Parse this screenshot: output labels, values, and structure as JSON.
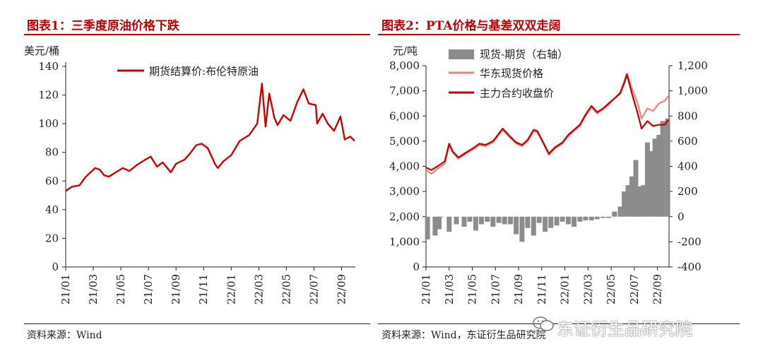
{
  "panel1": {
    "title": "图表1：三季度原油价格下跌",
    "source": "资料来源：Wind",
    "unit": "美元/桶"
  },
  "panel2": {
    "title": "图表2：PTA价格与基差双双走阔",
    "source": "资料来源：Wind，东证衍生品研究院",
    "unit_left": "元/吨"
  },
  "watermark": "东证衍生品研究院",
  "colors": {
    "title_red": "#c00000",
    "crude": "#cc0000",
    "spot": "#f08080",
    "futures": "#c00000",
    "basis": "#8c8c8c"
  },
  "chart_data": [
    {
      "type": "line",
      "title": "图表1：三季度原油价格下跌",
      "ylabel": "美元/桶",
      "ylim": [
        0,
        140
      ],
      "yticks": [
        0,
        20,
        40,
        60,
        80,
        100,
        120,
        140
      ],
      "xlim": [
        "2021-01",
        "2022-10"
      ],
      "xticks": [
        "21/01",
        "21/03",
        "21/05",
        "21/07",
        "21/09",
        "21/11",
        "22/01",
        "22/03",
        "22/05",
        "22/07",
        "22/09"
      ],
      "legend_position": "top",
      "series": [
        {
          "name": "期货结算价:布伦特原油",
          "color": "#cc0000",
          "points": [
            [
              "2021-01-01",
              53
            ],
            [
              "2021-01-15",
              56
            ],
            [
              "2021-02-01",
              57
            ],
            [
              "2021-02-15",
              63
            ],
            [
              "2021-03-05",
              69
            ],
            [
              "2021-03-15",
              68
            ],
            [
              "2021-03-25",
              64
            ],
            [
              "2021-04-05",
              63
            ],
            [
              "2021-04-20",
              66
            ],
            [
              "2021-05-05",
              69
            ],
            [
              "2021-05-20",
              67
            ],
            [
              "2021-06-05",
              71
            ],
            [
              "2021-06-25",
              75
            ],
            [
              "2021-07-06",
              77
            ],
            [
              "2021-07-20",
              70
            ],
            [
              "2021-08-02",
              73
            ],
            [
              "2021-08-20",
              66
            ],
            [
              "2021-09-01",
              72
            ],
            [
              "2021-09-20",
              75
            ],
            [
              "2021-10-01",
              79
            ],
            [
              "2021-10-15",
              85
            ],
            [
              "2021-10-27",
              86
            ],
            [
              "2021-11-10",
              83
            ],
            [
              "2021-11-26",
              72
            ],
            [
              "2021-12-02",
              69
            ],
            [
              "2021-12-15",
              74
            ],
            [
              "2022-01-01",
              78
            ],
            [
              "2022-01-20",
              88
            ],
            [
              "2022-02-10",
              92
            ],
            [
              "2022-02-28",
              100
            ],
            [
              "2022-03-08",
              128
            ],
            [
              "2022-03-16",
              98
            ],
            [
              "2022-03-24",
              121
            ],
            [
              "2022-04-05",
              104
            ],
            [
              "2022-04-12",
              99
            ],
            [
              "2022-04-25",
              106
            ],
            [
              "2022-05-10",
              102
            ],
            [
              "2022-05-25",
              115
            ],
            [
              "2022-06-08",
              124
            ],
            [
              "2022-06-20",
              114
            ],
            [
              "2022-07-05",
              113
            ],
            [
              "2022-07-08",
              100
            ],
            [
              "2022-07-20",
              107
            ],
            [
              "2022-08-01",
              100
            ],
            [
              "2022-08-15",
              95
            ],
            [
              "2022-08-29",
              105
            ],
            [
              "2022-09-08",
              89
            ],
            [
              "2022-09-20",
              91
            ],
            [
              "2022-09-30",
              88
            ]
          ]
        }
      ]
    },
    {
      "type": "line+bar",
      "title": "图表2：PTA价格与基差双双走阔",
      "ylabel_left": "元/吨",
      "ylim_left": [
        0,
        8000
      ],
      "yticks_left": [
        0,
        1000,
        2000,
        3000,
        4000,
        5000,
        6000,
        7000,
        8000
      ],
      "ylim_right": [
        -400,
        1200
      ],
      "yticks_right": [
        -400,
        -200,
        0,
        200,
        400,
        600,
        800,
        1000,
        1200
      ],
      "xlim": [
        "2021-01",
        "2022-10"
      ],
      "xticks": [
        "21/01",
        "21/03",
        "21/05",
        "21/07",
        "21/09",
        "21/11",
        "22/01",
        "22/03",
        "22/05",
        "22/07",
        "22/09"
      ],
      "legend_position": "top",
      "series": [
        {
          "name": "现货-期货（右轴）",
          "type": "bar",
          "axis": "right",
          "color": "#8c8c8c",
          "points": [
            [
              "2021-01-05",
              -180
            ],
            [
              "2021-01-25",
              -150
            ],
            [
              "2021-02-05",
              -100
            ],
            [
              "2021-02-10",
              0
            ],
            [
              "2021-03-01",
              -120
            ],
            [
              "2021-03-20",
              -60
            ],
            [
              "2021-04-10",
              -80
            ],
            [
              "2021-04-25",
              -40
            ],
            [
              "2021-05-10",
              -110
            ],
            [
              "2021-05-25",
              -60
            ],
            [
              "2021-06-10",
              -40
            ],
            [
              "2021-06-25",
              -80
            ],
            [
              "2021-07-10",
              -50
            ],
            [
              "2021-07-25",
              -60
            ],
            [
              "2021-08-10",
              -60
            ],
            [
              "2021-08-25",
              -140
            ],
            [
              "2021-09-10",
              -200
            ],
            [
              "2021-09-25",
              -90
            ],
            [
              "2021-10-10",
              -150
            ],
            [
              "2021-10-25",
              -50
            ],
            [
              "2021-11-10",
              -120
            ],
            [
              "2021-11-25",
              -90
            ],
            [
              "2021-12-10",
              -70
            ],
            [
              "2021-12-25",
              -40
            ],
            [
              "2022-01-10",
              -60
            ],
            [
              "2022-01-25",
              -80
            ],
            [
              "2022-02-10",
              -40
            ],
            [
              "2022-02-25",
              -30
            ],
            [
              "2022-03-10",
              -30
            ],
            [
              "2022-03-25",
              -20
            ],
            [
              "2022-04-10",
              -10
            ],
            [
              "2022-04-25",
              -10
            ],
            [
              "2022-05-10",
              40
            ],
            [
              "2022-05-25",
              80
            ],
            [
              "2022-06-05",
              200
            ],
            [
              "2022-06-15",
              250
            ],
            [
              "2022-06-25",
              320
            ],
            [
              "2022-07-05",
              450
            ],
            [
              "2022-07-15",
              240
            ],
            [
              "2022-07-25",
              250
            ],
            [
              "2022-08-05",
              590
            ],
            [
              "2022-08-15",
              520
            ],
            [
              "2022-08-25",
              620
            ],
            [
              "2022-09-05",
              650
            ],
            [
              "2022-09-15",
              760
            ],
            [
              "2022-09-28",
              780
            ]
          ]
        },
        {
          "name": "华东现货价格",
          "axis": "left",
          "color": "#f08080",
          "points": [
            [
              "2021-01-01",
              3850
            ],
            [
              "2021-01-15",
              3700
            ],
            [
              "2021-02-01",
              3900
            ],
            [
              "2021-02-20",
              4100
            ],
            [
              "2021-03-01",
              4850
            ],
            [
              "2021-03-10",
              4550
            ],
            [
              "2021-03-25",
              4300
            ],
            [
              "2021-04-15",
              4500
            ],
            [
              "2021-05-01",
              4650
            ],
            [
              "2021-05-20",
              4850
            ],
            [
              "2021-06-05",
              4800
            ],
            [
              "2021-06-25",
              4950
            ],
            [
              "2021-07-05",
              5150
            ],
            [
              "2021-07-20",
              5450
            ],
            [
              "2021-08-05",
              5200
            ],
            [
              "2021-08-25",
              4900
            ],
            [
              "2021-09-10",
              4800
            ],
            [
              "2021-09-25",
              5000
            ],
            [
              "2021-10-10",
              5400
            ],
            [
              "2021-10-20",
              5350
            ],
            [
              "2021-11-05",
              4900
            ],
            [
              "2021-11-20",
              4450
            ],
            [
              "2021-12-05",
              4700
            ],
            [
              "2021-12-25",
              4900
            ],
            [
              "2022-01-10",
              5200
            ],
            [
              "2022-01-25",
              5400
            ],
            [
              "2022-02-10",
              5600
            ],
            [
              "2022-02-25",
              6000
            ],
            [
              "2022-03-10",
              6350
            ],
            [
              "2022-03-25",
              6100
            ],
            [
              "2022-04-10",
              6250
            ],
            [
              "2022-04-25",
              6450
            ],
            [
              "2022-05-10",
              6700
            ],
            [
              "2022-05-25",
              6950
            ],
            [
              "2022-06-05",
              7400
            ],
            [
              "2022-06-12",
              7700
            ],
            [
              "2022-06-25",
              7100
            ],
            [
              "2022-07-10",
              6500
            ],
            [
              "2022-07-20",
              5900
            ],
            [
              "2022-08-05",
              6300
            ],
            [
              "2022-08-20",
              6200
            ],
            [
              "2022-09-05",
              6500
            ],
            [
              "2022-09-20",
              6600
            ],
            [
              "2022-09-30",
              6800
            ]
          ]
        },
        {
          "name": "主力合约收盘价",
          "axis": "left",
          "color": "#c00000",
          "points": [
            [
              "2021-01-01",
              3950
            ],
            [
              "2021-01-15",
              3850
            ],
            [
              "2021-02-01",
              4000
            ],
            [
              "2021-02-20",
              4200
            ],
            [
              "2021-03-01",
              4900
            ],
            [
              "2021-03-10",
              4600
            ],
            [
              "2021-03-25",
              4350
            ],
            [
              "2021-04-15",
              4550
            ],
            [
              "2021-05-01",
              4700
            ],
            [
              "2021-05-20",
              4900
            ],
            [
              "2021-06-05",
              4850
            ],
            [
              "2021-06-25",
              5000
            ],
            [
              "2021-07-05",
              5200
            ],
            [
              "2021-07-20",
              5500
            ],
            [
              "2021-08-05",
              5250
            ],
            [
              "2021-08-25",
              4950
            ],
            [
              "2021-09-10",
              4850
            ],
            [
              "2021-09-25",
              5050
            ],
            [
              "2021-10-10",
              5450
            ],
            [
              "2021-10-20",
              5400
            ],
            [
              "2021-11-05",
              4950
            ],
            [
              "2021-11-20",
              4500
            ],
            [
              "2021-12-05",
              4750
            ],
            [
              "2021-12-25",
              4950
            ],
            [
              "2022-01-10",
              5250
            ],
            [
              "2022-01-25",
              5450
            ],
            [
              "2022-02-10",
              5650
            ],
            [
              "2022-02-25",
              6050
            ],
            [
              "2022-03-10",
              6400
            ],
            [
              "2022-03-25",
              6150
            ],
            [
              "2022-04-10",
              6300
            ],
            [
              "2022-04-25",
              6500
            ],
            [
              "2022-05-10",
              6700
            ],
            [
              "2022-05-25",
              6900
            ],
            [
              "2022-06-05",
              7300
            ],
            [
              "2022-06-12",
              7650
            ],
            [
              "2022-06-25",
              6900
            ],
            [
              "2022-07-10",
              6100
            ],
            [
              "2022-07-20",
              5500
            ],
            [
              "2022-08-05",
              5800
            ],
            [
              "2022-08-20",
              5600
            ],
            [
              "2022-09-05",
              5650
            ],
            [
              "2022-09-20",
              5650
            ],
            [
              "2022-09-30",
              5850
            ]
          ]
        }
      ]
    }
  ]
}
